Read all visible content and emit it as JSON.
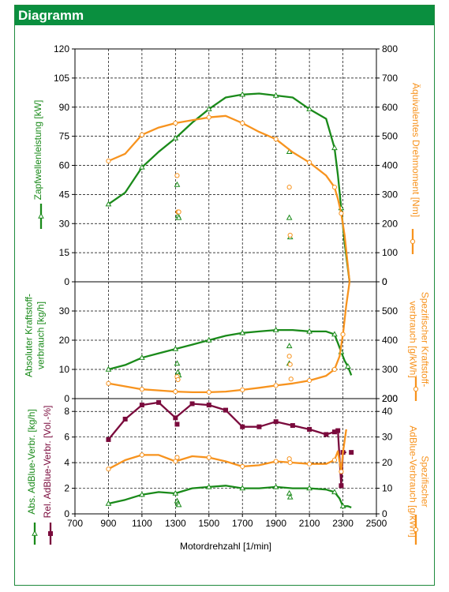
{
  "header": {
    "title": "Diagramm"
  },
  "colors": {
    "green": "#1a8a1a",
    "orange": "#f7931e",
    "maroon": "#7a0a3c",
    "header": "#0a8f3f"
  },
  "chart_data": {
    "type": "line",
    "x_label": "Motordrehzahl [1/min]",
    "x_range": [
      700,
      2500
    ],
    "x_ticks": [
      "700",
      "900",
      "1100",
      "1300",
      "1500",
      "1700",
      "1900",
      "2100",
      "2300",
      "2500"
    ],
    "panels": [
      {
        "id": "power-torque",
        "left_label": "Zapfwellenleistung [kW]",
        "left_range": [
          0,
          120
        ],
        "left_ticks": [
          "0",
          "15",
          "30",
          "45",
          "60",
          "75",
          "90",
          "105",
          "120"
        ],
        "right_label": "Äquivalentes Drehmoment [Nm]",
        "right_range": [
          0,
          800
        ],
        "right_ticks": [
          "0",
          "100",
          "200",
          "300",
          "400",
          "500",
          "600",
          "700",
          "800"
        ],
        "series": [
          {
            "axis": "left",
            "color": "green",
            "marker": "triangle",
            "x": [
              900,
              1000,
              1100,
              1200,
              1300,
              1400,
              1500,
              1600,
              1700,
              1800,
              1900,
              2000,
              2100,
              2200,
              2250,
              2270,
              2290,
              2310,
              2340
            ],
            "y": [
              40,
              46,
              59,
              67,
              74,
              82,
              89,
              95,
              96.5,
              97,
              96,
              95,
              89,
              84,
              69,
              55,
              38,
              20,
              0
            ],
            "scatter": [
              [
                1310,
                50
              ],
              [
                1315,
                34
              ],
              [
                1320,
                33
              ],
              [
                1980,
                67
              ],
              [
                1980,
                33
              ],
              [
                1985,
                23
              ]
            ]
          },
          {
            "axis": "right",
            "color": "orange",
            "marker": "circle",
            "x": [
              900,
              1000,
              1100,
              1200,
              1300,
              1400,
              1500,
              1600,
              1700,
              1800,
              1900,
              2000,
              2100,
              2200,
              2250,
              2270,
              2290,
              2310,
              2340
            ],
            "y": [
              415,
              440,
              505,
              530,
              545,
              555,
              565,
              570,
              545,
              515,
              490,
              445,
              410,
              365,
              325,
              285,
              235,
              160,
              0
            ],
            "scatter": [
              [
                1310,
                365
              ],
              [
                1315,
                240
              ],
              [
                1320,
                240
              ],
              [
                1980,
                325
              ],
              [
                1985,
                160
              ]
            ]
          }
        ]
      },
      {
        "id": "fuel",
        "left_label": "Absoluter Kraftstoff-verbrauch [kg/h]",
        "left_label_lines": [
          "Absoluter Kraftstoff-",
          "verbrauch [kg/h]"
        ],
        "left_range": [
          0,
          40
        ],
        "left_ticks": [
          "0",
          "10",
          "20",
          "30"
        ],
        "right_label": "Spezifischer Kraftstoff-verbrauch [g/kWh]",
        "right_label_lines": [
          "Spezifischer Kraftstoff-",
          "verbrauch [g/kWh]"
        ],
        "right_range": [
          200,
          600
        ],
        "right_ticks": [
          "200",
          "300",
          "400",
          "500"
        ],
        "series": [
          {
            "axis": "left",
            "color": "green",
            "marker": "triangle",
            "x": [
              900,
              1000,
              1100,
              1200,
              1300,
              1400,
              1500,
              1600,
              1700,
              1800,
              1900,
              2000,
              2100,
              2200,
              2250,
              2270,
              2290,
              2310,
              2330,
              2350
            ],
            "y": [
              10,
              11.5,
              14,
              15.5,
              17,
              18.5,
              20,
              21.5,
              22.5,
              23,
              23.5,
              23.5,
              23,
              23,
              22,
              19,
              16,
              13,
              11,
              8
            ],
            "scatter": [
              [
                1310,
                12
              ],
              [
                1315,
                9
              ],
              [
                1320,
                8
              ],
              [
                1980,
                18
              ],
              [
                1980,
                12
              ]
            ]
          },
          {
            "axis": "right",
            "color": "orange",
            "marker": "circle",
            "x": [
              900,
              1000,
              1100,
              1200,
              1300,
              1400,
              1500,
              1600,
              1700,
              1800,
              1900,
              2000,
              2100,
              2200,
              2250,
              2280,
              2300,
              2320,
              2340
            ],
            "y": [
              252,
              242,
              232,
              228,
              224,
              222,
              222,
              224,
              230,
              237,
              245,
              252,
              262,
              278,
              300,
              345,
              420,
              520,
              600
            ],
            "scatter": [
              [
                1310,
                275
              ],
              [
                1315,
                265
              ],
              [
                1980,
                345
              ],
              [
                1985,
                317
              ],
              [
                1990,
                267
              ]
            ]
          }
        ]
      },
      {
        "id": "adblue",
        "left_label": "Abs. AdBlue-Verbr. [kg/h]",
        "mid_label": "Rel. AdBlue-Verbr. [Vol.-%]",
        "left_range": [
          0,
          9
        ],
        "left_ticks": [
          "0",
          "2",
          "4",
          "6",
          "8"
        ],
        "right_label": "Spezifischer AdBlue-Verbrauch [g/kWh]",
        "right_label_lines": [
          "Spezifischer",
          "AdBlue-Verbrauch [g/kWh]"
        ],
        "right_range": [
          0,
          45
        ],
        "right_ticks": [
          "0",
          "10",
          "20",
          "30",
          "40"
        ],
        "series": [
          {
            "axis": "left",
            "color": "maroon",
            "marker": "square",
            "x": [
              900,
              1000,
              1100,
              1200,
              1300,
              1400,
              1500,
              1600,
              1700,
              1800,
              1900,
              2000,
              2100,
              2200,
              2250,
              2270,
              2290,
              2300,
              2320
            ],
            "y": [
              5.8,
              7.4,
              8.5,
              8.7,
              7.5,
              8.6,
              8.5,
              8.1,
              6.8,
              6.8,
              7.2,
              6.9,
              6.6,
              6.2,
              6.4,
              6.5,
              2.2,
              4.8,
              4.8
            ],
            "scatter": [
              [
                1310,
                7.0
              ],
              [
                2350,
                4.8
              ]
            ]
          },
          {
            "axis": "left",
            "color": "orange",
            "marker": "circle",
            "x": [
              900,
              1000,
              1100,
              1200,
              1300,
              1400,
              1500,
              1600,
              1700,
              1800,
              1900,
              2000,
              2100,
              2200,
              2250,
              2270,
              2290,
              2300,
              2320
            ],
            "y": [
              3.5,
              4.2,
              4.6,
              4.6,
              4.1,
              4.5,
              4.4,
              4.1,
              3.7,
              3.8,
              4.1,
              4.0,
              3.9,
              3.9,
              4.2,
              4.9,
              3.3,
              4.8,
              6.6
            ],
            "scatter": [
              [
                1310,
                4.4
              ],
              [
                1980,
                4.3
              ],
              [
                1985,
                4.0
              ]
            ]
          },
          {
            "axis": "left",
            "color": "green",
            "marker": "triangle",
            "x": [
              900,
              1000,
              1100,
              1200,
              1300,
              1400,
              1500,
              1600,
              1700,
              1800,
              1900,
              2000,
              2100,
              2200,
              2250,
              2280,
              2300,
              2330,
              2350
            ],
            "y": [
              0.8,
              1.1,
              1.5,
              1.7,
              1.6,
              2.0,
              2.1,
              2.2,
              2.0,
              2.0,
              2.1,
              2.0,
              2.0,
              1.9,
              1.7,
              1.2,
              0.6,
              0.6,
              0.5
            ],
            "scatter": [
              [
                1310,
                1.0
              ],
              [
                1315,
                0.8
              ],
              [
                1320,
                0.7
              ],
              [
                1980,
                1.6
              ],
              [
                1985,
                1.3
              ]
            ]
          }
        ]
      }
    ]
  }
}
